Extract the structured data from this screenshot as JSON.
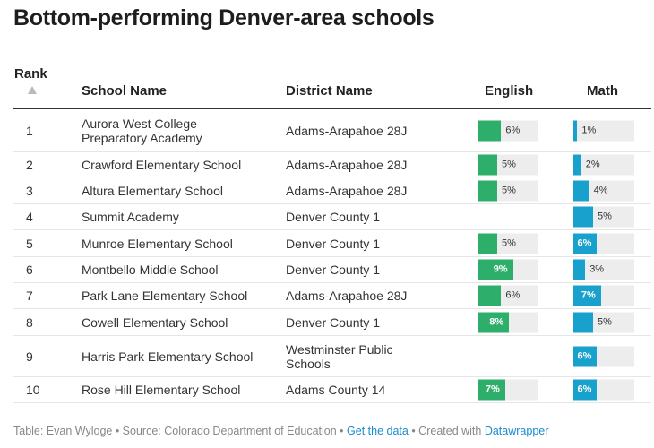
{
  "title": "Bottom-performing Denver-area schools",
  "headers": {
    "rank": "Rank",
    "school": "School Name",
    "district": "District Name",
    "english": "English",
    "math": "Math"
  },
  "colors": {
    "english": "#2eae6b",
    "math": "#18a1cd",
    "track": "#ededed"
  },
  "chart_data": {
    "type": "table",
    "bar_columns": [
      "English",
      "Math"
    ],
    "rows": [
      {
        "rank": "1",
        "school": "Aurora West College Preparatory Academy",
        "district": "Adams-Arapahoe 28J",
        "english": 6,
        "math": 1
      },
      {
        "rank": "2",
        "school": "Crawford Elementary School",
        "district": "Adams-Arapahoe 28J",
        "english": 5,
        "math": 2
      },
      {
        "rank": "3",
        "school": "Altura Elementary School",
        "district": "Adams-Arapahoe 28J",
        "english": 5,
        "math": 4
      },
      {
        "rank": "4",
        "school": "Summit Academy",
        "district": "Denver County 1",
        "english": null,
        "math": 5
      },
      {
        "rank": "5",
        "school": "Munroe Elementary School",
        "district": "Denver County 1",
        "english": 5,
        "math": 6
      },
      {
        "rank": "6",
        "school": "Montbello Middle School",
        "district": "Denver County 1",
        "english": 9,
        "math": 3
      },
      {
        "rank": "7",
        "school": "Park Lane Elementary School",
        "district": "Adams-Arapahoe 28J",
        "english": 6,
        "math": 7
      },
      {
        "rank": "8",
        "school": "Cowell Elementary School",
        "district": "Denver County 1",
        "english": 8,
        "math": 5
      },
      {
        "rank": "9",
        "school": "Harris Park Elementary School",
        "district": "Westminster Public Schools",
        "english": null,
        "math": 6
      },
      {
        "rank": "10",
        "school": "Rose Hill Elementary School",
        "district": "Adams County 14",
        "english": 7,
        "math": 6
      }
    ]
  },
  "footer": {
    "prefix": "Table: Evan Wyloge • Source: Colorado Department of Education • ",
    "get_data": "Get the data",
    "middle": " • Created with ",
    "datawrapper": "Datawrapper"
  }
}
